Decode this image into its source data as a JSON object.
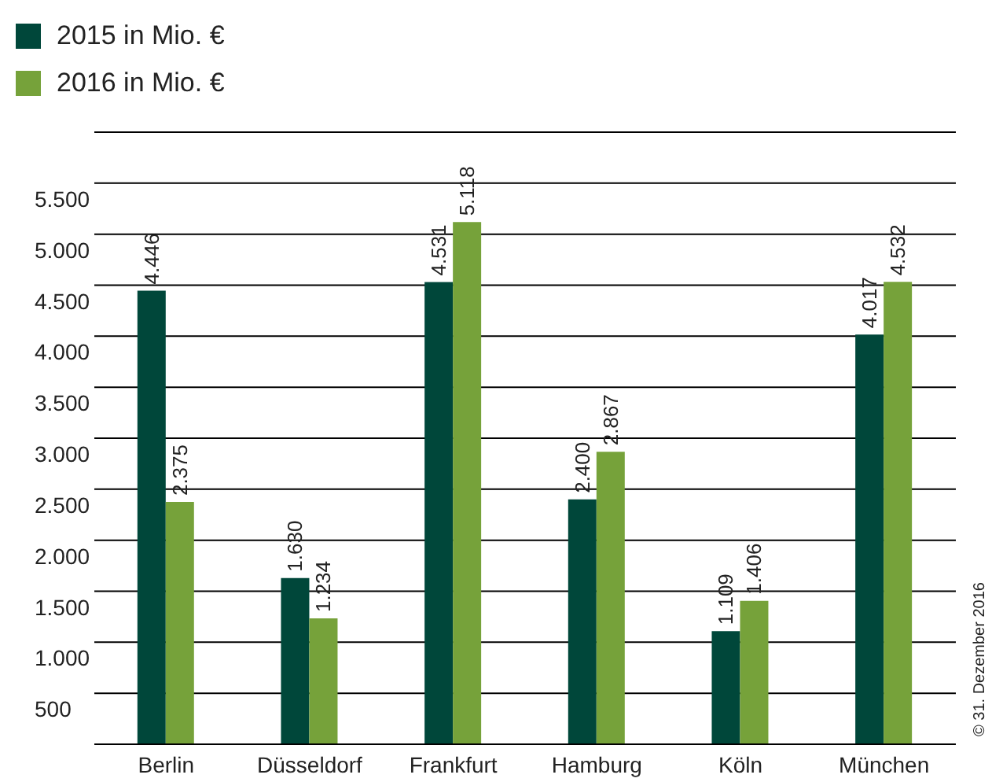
{
  "chart_data": {
    "type": "bar",
    "categories": [
      "Berlin",
      "Düsseldorf",
      "Frankfurt",
      "Hamburg",
      "Köln",
      "München"
    ],
    "series": [
      {
        "name": "2015 in Mio. €",
        "color": "#00473a",
        "values": [
          4446,
          1630,
          4531,
          2400,
          1109,
          4017
        ]
      },
      {
        "name": "2016 in Mio. €",
        "color": "#76a23a",
        "values": [
          2375,
          1234,
          5118,
          2867,
          1406,
          4532
        ]
      }
    ],
    "value_labels": [
      [
        "4.446",
        "1.630",
        "4.531",
        "2.400",
        "1.109",
        "4.017"
      ],
      [
        "2.375",
        "1.234",
        "5.118",
        "2.867",
        "1.406",
        "4.532"
      ]
    ],
    "ylim": [
      0,
      6000
    ],
    "yticks": [
      {
        "value": 500,
        "label": "500"
      },
      {
        "value": 1000,
        "label": "1.000"
      },
      {
        "value": 1500,
        "label": "1.500"
      },
      {
        "value": 2000,
        "label": "2.000"
      },
      {
        "value": 2500,
        "label": "2.500"
      },
      {
        "value": 3000,
        "label": "3.000"
      },
      {
        "value": 3500,
        "label": "3.500"
      },
      {
        "value": 4000,
        "label": "4.000"
      },
      {
        "value": 4500,
        "label": "4.500"
      },
      {
        "value": 5000,
        "label": "5.000"
      },
      {
        "value": 5500,
        "label": "5.500"
      }
    ],
    "grid": "y",
    "legend": "top left",
    "annotations": [
      "© 31. Dezember 2016"
    ]
  }
}
